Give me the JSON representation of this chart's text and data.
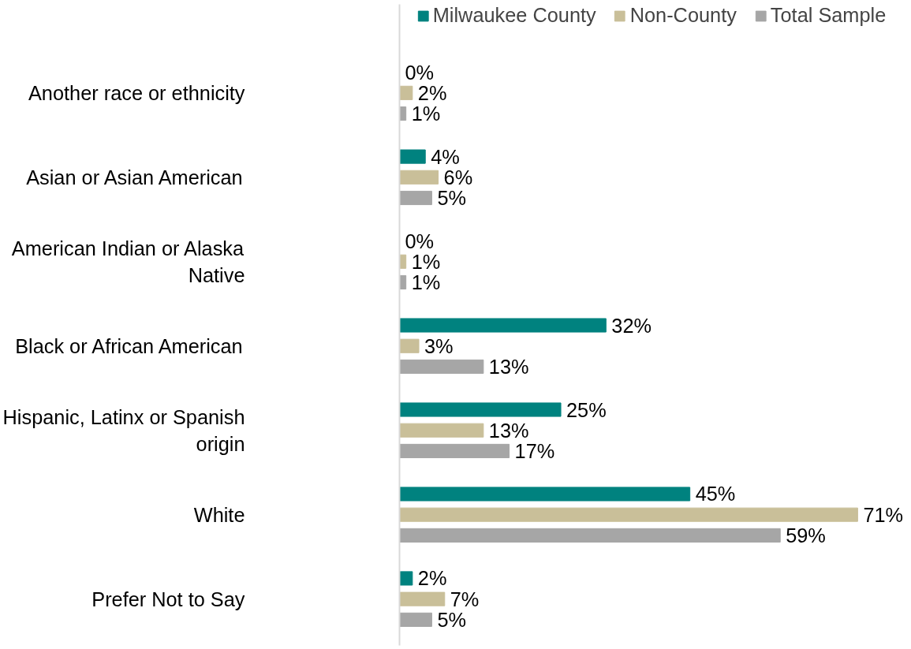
{
  "chart_data": {
    "type": "bar",
    "orientation": "horizontal",
    "legend": "top",
    "grid": false,
    "categories": [
      "Another race or ethnicity",
      "Asian or Asian American",
      "American Indian or Alaska\nNative",
      "Black or African American",
      "Hispanic, Latinx or Spanish\norigin",
      "White",
      "Prefer Not to Say"
    ],
    "series": [
      {
        "name": "Milwaukee County",
        "color": "#00827f",
        "values": [
          0,
          4,
          0,
          32,
          25,
          45,
          2
        ],
        "value_labels": [
          "0%",
          "4%",
          "0%",
          "32%",
          "25%",
          "45%",
          "2%"
        ]
      },
      {
        "name": "Non-County",
        "color": "#c9bf99",
        "values": [
          2,
          6,
          1,
          3,
          13,
          71,
          7
        ],
        "value_labels": [
          "2%",
          "6%",
          "1%",
          "3%",
          "13%",
          "71%",
          "7%"
        ]
      },
      {
        "name": "Total Sample",
        "color": "#a6a6a6",
        "values": [
          1,
          5,
          1,
          13,
          17,
          59,
          5
        ],
        "value_labels": [
          "1%",
          "5%",
          "1%",
          "13%",
          "17%",
          "59%",
          "5%"
        ]
      }
    ]
  }
}
